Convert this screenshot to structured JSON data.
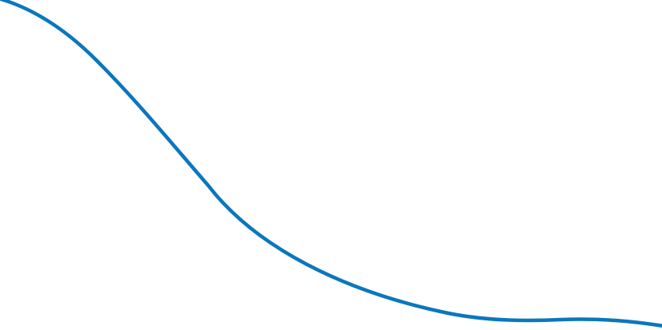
{
  "decoration": {
    "curve_color": "#0a77bd",
    "background_color": "#ffffff"
  }
}
